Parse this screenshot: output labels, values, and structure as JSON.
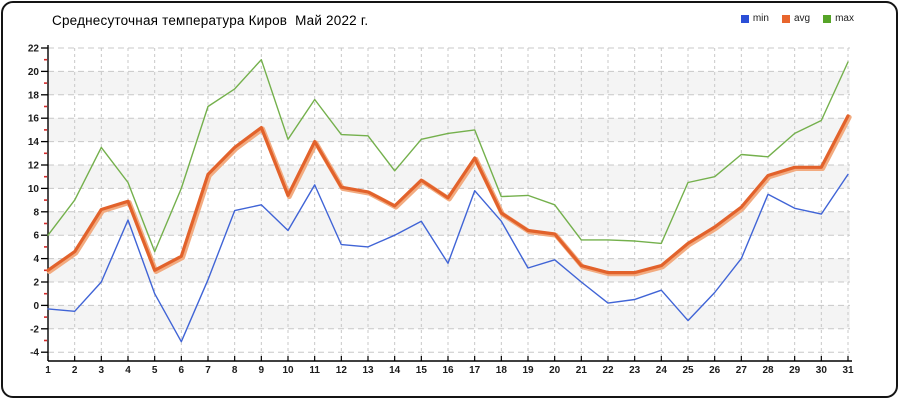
{
  "title": "Среднесуточная температура Киров  Май 2022 г.",
  "legend": {
    "items": [
      {
        "label": "min",
        "color": "#2b4fd7"
      },
      {
        "label": "avg",
        "color": "#e8652d"
      },
      {
        "label": "max",
        "color": "#56a428"
      }
    ]
  },
  "chart_data": {
    "type": "line",
    "title": "Среднесуточная температура Киров  Май 2022 г.",
    "xlabel": "",
    "ylabel": "",
    "x": [
      1,
      2,
      3,
      4,
      5,
      6,
      7,
      8,
      9,
      10,
      11,
      12,
      13,
      14,
      15,
      16,
      17,
      18,
      19,
      20,
      21,
      22,
      23,
      24,
      25,
      26,
      27,
      28,
      29,
      30,
      31
    ],
    "ylim": [
      -4,
      22
    ],
    "ytick_step": 2,
    "grid": true,
    "legend_position": "top-right",
    "band_fill": "#f4f4f4",
    "bands": [
      [
        18,
        20
      ],
      [
        14,
        16
      ],
      [
        10,
        12
      ],
      [
        6,
        8
      ],
      [
        2,
        4
      ],
      [
        -2,
        0
      ]
    ],
    "grid_color": "#c8c8c8",
    "axis_color": "#000000",
    "minor_tick_color": "#d42a2a",
    "tick_label_color": "#1a1a1a",
    "series": [
      {
        "name": "min",
        "color": "#4064d6",
        "width": 1.4,
        "values": [
          -0.3,
          -0.5,
          2.0,
          7.3,
          1.0,
          -3.1,
          2.2,
          8.1,
          8.6,
          6.4,
          10.3,
          5.2,
          5.0,
          6.0,
          7.2,
          3.6,
          9.8,
          7.2,
          3.2,
          3.9,
          2.0,
          0.2,
          0.5,
          1.3,
          -1.3,
          1.1,
          4.0,
          9.5,
          8.3,
          7.8,
          11.2
        ]
      },
      {
        "name": "avg",
        "color": "#e2622b",
        "halo": "#f2ab80",
        "width": 3.2,
        "values": [
          3.0,
          4.6,
          8.2,
          8.9,
          3.0,
          4.2,
          11.2,
          13.5,
          15.2,
          9.4,
          14.0,
          10.1,
          9.7,
          8.5,
          10.7,
          9.2,
          12.6,
          7.9,
          6.4,
          6.1,
          3.4,
          2.8,
          2.8,
          3.4,
          5.3,
          6.7,
          8.4,
          11.1,
          11.8,
          11.8,
          16.2
        ]
      },
      {
        "name": "max",
        "color": "#74b04c",
        "width": 1.4,
        "values": [
          6.0,
          9.0,
          13.5,
          10.5,
          4.6,
          10.0,
          17.0,
          18.5,
          21.0,
          14.2,
          17.6,
          14.6,
          14.5,
          11.5,
          14.2,
          14.7,
          15.0,
          9.3,
          9.4,
          8.6,
          5.6,
          5.6,
          5.5,
          5.3,
          10.5,
          11.0,
          12.9,
          12.7,
          14.7,
          15.8,
          20.8
        ]
      }
    ]
  }
}
